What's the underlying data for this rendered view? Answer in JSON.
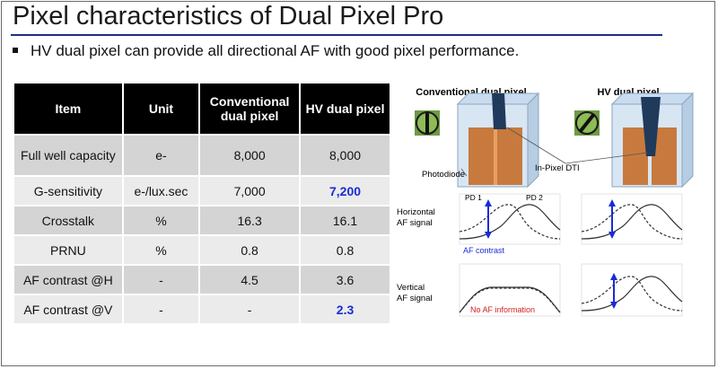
{
  "slide": {
    "title": "Pixel characteristics of Dual Pixel Pro",
    "bullet": "HV dual pixel can provide all directional AF with good pixel performance."
  },
  "table": {
    "headers": [
      "Item",
      "Unit",
      "Conventional dual pixel",
      "HV dual pixel"
    ],
    "rows": [
      {
        "item": "Full well capacity",
        "unit": "e-",
        "conventional": "8,000",
        "hv": "8,000",
        "hv_highlight": false
      },
      {
        "item": "G-sensitivity",
        "unit": "e-/lux.sec",
        "conventional": "7,000",
        "hv": "7,200",
        "hv_highlight": true
      },
      {
        "item": "Crosstalk",
        "unit": "%",
        "conventional": "16.3",
        "hv": "16.1",
        "hv_highlight": false
      },
      {
        "item": "PRNU",
        "unit": "%",
        "conventional": "0.8",
        "hv": "0.8",
        "hv_highlight": false
      },
      {
        "item": "AF contrast @H",
        "unit": "-",
        "conventional": "4.5",
        "hv": "3.6",
        "hv_highlight": false
      },
      {
        "item": "AF contrast @V",
        "unit": "-",
        "conventional": "-",
        "hv": "2.3",
        "hv_highlight": true
      }
    ]
  },
  "diagram": {
    "col_conventional": "Conventional dual pixel",
    "col_hv": "HV dual pixel",
    "label_photodiode": "Photodiode",
    "label_dti": "In-Pixel DTI",
    "label_pd1": "PD 1",
    "label_pd2": "PD 2",
    "row_horizontal": [
      "Horizontal",
      "AF signal"
    ],
    "row_vertical": [
      "Vertical",
      "AF signal"
    ],
    "af_contrast": "AF contrast",
    "no_af": "No AF information"
  },
  "colors": {
    "title_rule": "#1f2d86",
    "highlight": "#1a2bd6",
    "photodiode": "#c87a3e",
    "dti": "#1f3a5a",
    "lens_green": "#6f9a45",
    "no_af_red": "#d21f1f"
  }
}
